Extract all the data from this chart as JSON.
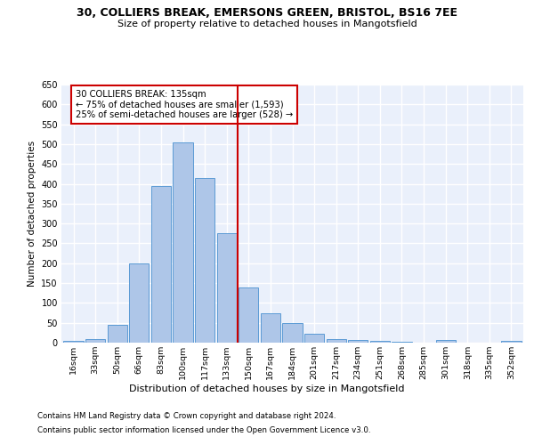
{
  "title_line1": "30, COLLIERS BREAK, EMERSONS GREEN, BRISTOL, BS16 7EE",
  "title_line2": "Size of property relative to detached houses in Mangotsfield",
  "xlabel": "Distribution of detached houses by size in Mangotsfield",
  "ylabel": "Number of detached properties",
  "footnote1": "Contains HM Land Registry data © Crown copyright and database right 2024.",
  "footnote2": "Contains public sector information licensed under the Open Government Licence v3.0.",
  "annotation_title": "30 COLLIERS BREAK: 135sqm",
  "annotation_line1": "← 75% of detached houses are smaller (1,593)",
  "annotation_line2": "25% of semi-detached houses are larger (528) →",
  "bar_color": "#aec6e8",
  "bar_edge_color": "#5b9bd5",
  "background_color": "#eaf0fb",
  "grid_color": "#ffffff",
  "vline_color": "#cc0000",
  "annotation_box_color": "#cc0000",
  "categories": [
    "16sqm",
    "33sqm",
    "50sqm",
    "66sqm",
    "83sqm",
    "100sqm",
    "117sqm",
    "133sqm",
    "150sqm",
    "167sqm",
    "184sqm",
    "201sqm",
    "217sqm",
    "234sqm",
    "251sqm",
    "268sqm",
    "285sqm",
    "301sqm",
    "318sqm",
    "335sqm",
    "352sqm"
  ],
  "values": [
    5,
    10,
    45,
    200,
    395,
    505,
    415,
    275,
    140,
    75,
    50,
    22,
    10,
    7,
    5,
    2,
    0,
    7,
    0,
    0,
    5
  ],
  "vline_position": 7.5,
  "ylim": [
    0,
    650
  ],
  "yticks": [
    0,
    50,
    100,
    150,
    200,
    250,
    300,
    350,
    400,
    450,
    500,
    550,
    600,
    650
  ]
}
